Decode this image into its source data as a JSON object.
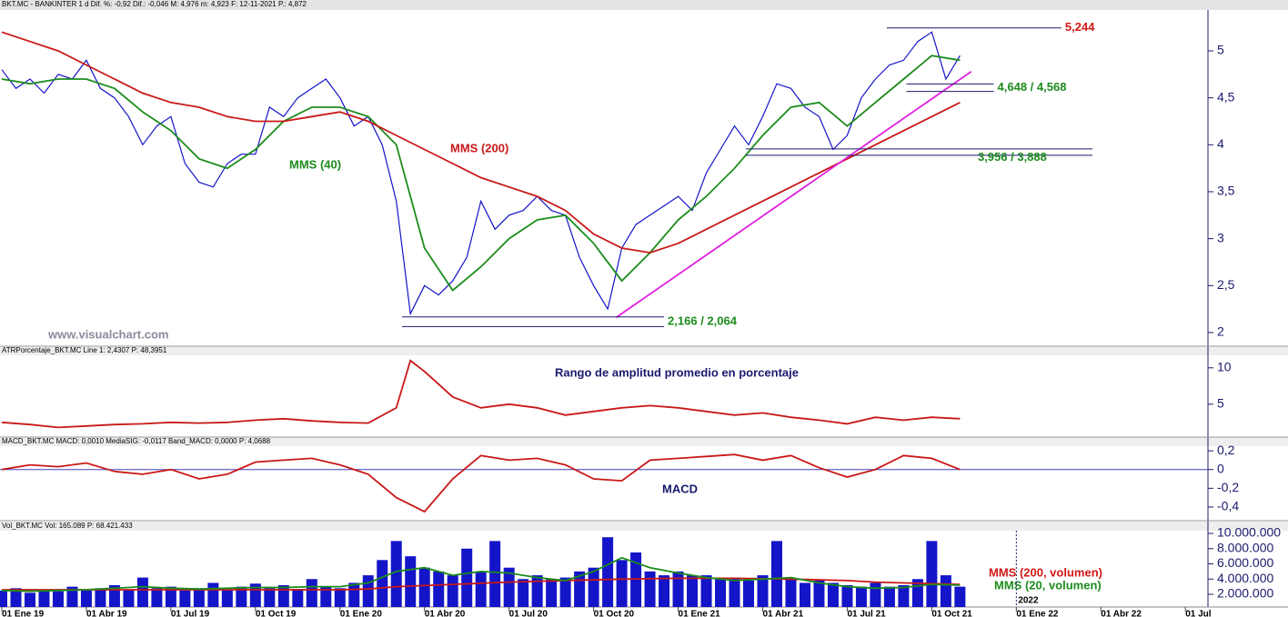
{
  "x_axis": {
    "xlim": [
      0,
      42.8
    ],
    "xticks": [
      {
        "value": 0,
        "label": "01 Ene 19"
      },
      {
        "value": 3,
        "label": "01 Abr 19"
      },
      {
        "value": 6,
        "label": "01 Jul 19"
      },
      {
        "value": 9,
        "label": "01 Oct 19"
      },
      {
        "value": 12,
        "label": "01 Ene 20"
      },
      {
        "value": 15,
        "label": "01 Abr 20"
      },
      {
        "value": 18,
        "label": "01 Jul 20"
      },
      {
        "value": 21,
        "label": "01 Oct 20"
      },
      {
        "value": 24,
        "label": "01 Ene 21"
      },
      {
        "value": 27,
        "label": "01 Abr 21"
      },
      {
        "value": 30,
        "label": "01 Jul 21"
      },
      {
        "value": 33,
        "label": "01 Oct 21"
      },
      {
        "value": 36,
        "label": "01 Ene 22"
      },
      {
        "value": 39,
        "label": "01 Abr 22"
      },
      {
        "value": 42,
        "label": "01 Jul"
      }
    ],
    "year_label": {
      "value": 36,
      "label": "2022"
    }
  },
  "chart_data": [
    {
      "type": "line",
      "title": "BKT.MC - BANKINTER   1 d  Dif. %: -0,92  Dif.: -0,046  M: 4,976  m: 4,923  F: 12-11-2021  P.: 4,872",
      "ylim": [
        1.864,
        5.426
      ],
      "yticks": [
        {
          "value": 2,
          "label": "2"
        },
        {
          "value": 2.5,
          "label": "2,5"
        },
        {
          "value": 3,
          "label": "3"
        },
        {
          "value": 3.5,
          "label": "3,5"
        },
        {
          "value": 4,
          "label": "4"
        },
        {
          "value": 4.5,
          "label": "4,5"
        },
        {
          "value": 5,
          "label": "5"
        }
      ],
      "annotations": [
        "MMS (40)",
        "MMS (200)",
        "www.visualchart.com"
      ],
      "series": [
        {
          "type": "line",
          "color": "#1414c8",
          "x": [
            0,
            0.5,
            1,
            1.5,
            2,
            2.5,
            3,
            3.5,
            4,
            4.5,
            5,
            5.5,
            6,
            6.5,
            7,
            7.5,
            8,
            8.5,
            9,
            9.5,
            10,
            10.5,
            11,
            11.5,
            12,
            12.5,
            13,
            13.5,
            14,
            14.5,
            15,
            15.5,
            16,
            16.5,
            17,
            17.5,
            18,
            18.5,
            19,
            19.5,
            20,
            20.5,
            21,
            21.5,
            22,
            22.5,
            23,
            23.5,
            24,
            24.5,
            25,
            25.5,
            26,
            26.5,
            27,
            27.5,
            28,
            28.5,
            29,
            29.5,
            30,
            30.5,
            31,
            31.5,
            32,
            32.5,
            33,
            33.5,
            34
          ],
          "values": [
            4.8,
            4.6,
            4.7,
            4.55,
            4.75,
            4.7,
            4.9,
            4.6,
            4.5,
            4.3,
            4.0,
            4.2,
            4.3,
            3.8,
            3.6,
            3.55,
            3.8,
            3.9,
            3.9,
            4.4,
            4.3,
            4.5,
            4.6,
            4.7,
            4.5,
            4.2,
            4.3,
            4.0,
            3.4,
            2.2,
            2.5,
            2.4,
            2.55,
            2.8,
            3.4,
            3.1,
            3.25,
            3.3,
            3.45,
            3.3,
            3.25,
            2.8,
            2.5,
            2.25,
            2.9,
            3.15,
            3.25,
            3.35,
            3.45,
            3.3,
            3.7,
            3.95,
            4.2,
            4.0,
            4.3,
            4.65,
            4.6,
            4.4,
            4.3,
            3.95,
            4.1,
            4.5,
            4.7,
            4.85,
            4.9,
            5.1,
            5.2,
            4.7,
            4.95
          ]
        },
        {
          "type": "line",
          "color": "#1c8c1c",
          "x": [
            0,
            1,
            2,
            3,
            4,
            5,
            6,
            7,
            8,
            9,
            10,
            11,
            12,
            13,
            14,
            15,
            16,
            17,
            18,
            19,
            20,
            21,
            22,
            23,
            24,
            25,
            26,
            27,
            28,
            29,
            30,
            31,
            32,
            33,
            34
          ],
          "values": [
            4.7,
            4.65,
            4.7,
            4.7,
            4.6,
            4.35,
            4.15,
            3.85,
            3.75,
            3.95,
            4.25,
            4.4,
            4.4,
            4.3,
            4.0,
            2.9,
            2.45,
            2.7,
            3.0,
            3.2,
            3.25,
            2.95,
            2.55,
            2.85,
            3.2,
            3.45,
            3.75,
            4.1,
            4.4,
            4.45,
            4.2,
            4.45,
            4.7,
            4.95,
            4.9
          ]
        },
        {
          "type": "line",
          "color": "#c81818",
          "x": [
            0,
            1,
            2,
            3,
            4,
            5,
            6,
            7,
            8,
            9,
            10,
            11,
            12,
            13,
            14,
            15,
            16,
            17,
            18,
            19,
            20,
            21,
            22,
            23,
            24,
            25,
            26,
            27,
            28,
            29,
            30,
            31,
            32,
            33,
            34
          ],
          "values": [
            5.2,
            5.1,
            5.0,
            4.85,
            4.7,
            4.55,
            4.45,
            4.4,
            4.3,
            4.25,
            4.25,
            4.3,
            4.35,
            4.25,
            4.1,
            3.95,
            3.8,
            3.65,
            3.55,
            3.45,
            3.3,
            3.05,
            2.9,
            2.85,
            2.95,
            3.1,
            3.25,
            3.4,
            3.55,
            3.7,
            3.85,
            4.0,
            4.15,
            4.3,
            4.45
          ]
        },
        {
          "type": "line",
          "color": "#e020e0",
          "x": [
            21.8,
            34.4
          ],
          "values": [
            2.16,
            4.78
          ]
        }
      ],
      "levels": [
        {
          "label": "5,244",
          "color": "#d01818",
          "values": [
            5.244
          ],
          "x": [
            31.4,
            37.6
          ]
        },
        {
          "label": "4,648 / 4,568",
          "color": "#1c8c1c",
          "values": [
            4.648,
            4.568
          ],
          "x": [
            32.1,
            35.2
          ]
        },
        {
          "label": "3,956 / 3,888",
          "color": "#1c8c1c",
          "values": [
            3.956,
            3.888
          ],
          "x": [
            26.4,
            38.7
          ]
        },
        {
          "label": "2,166 / 2,064",
          "color": "#1c8c1c",
          "values": [
            2.166,
            2.064
          ],
          "x": [
            14.2,
            23.5
          ]
        }
      ]
    },
    {
      "type": "line",
      "title": "ATRPorcentaje_BKT.MC  Line 1: 2,4307  P: 48,3951",
      "ylim": [
        0.6,
        11.6
      ],
      "yticks": [
        5,
        10
      ],
      "annotations": [
        "Rango de amplitud promedio en porcentaje"
      ],
      "series": [
        {
          "type": "line",
          "color": "#c81818",
          "x": [
            0,
            1,
            2,
            3,
            4,
            5,
            6,
            7,
            8,
            9,
            10,
            11,
            12,
            13,
            14,
            14.5,
            15,
            16,
            17,
            18,
            19,
            20,
            21,
            22,
            23,
            24,
            25,
            26,
            27,
            28,
            29,
            30,
            31,
            32,
            33,
            34
          ],
          "values": [
            2.5,
            2.2,
            1.8,
            2.0,
            2.2,
            2.3,
            2.5,
            2.4,
            2.5,
            2.8,
            3.0,
            2.7,
            2.5,
            2.4,
            4.5,
            11,
            9.5,
            6.0,
            4.5,
            5.0,
            4.5,
            3.5,
            4.0,
            4.5,
            4.8,
            4.5,
            4.0,
            3.5,
            3.8,
            3.2,
            2.8,
            2.3,
            3.2,
            2.8,
            3.2,
            3.0
          ]
        }
      ]
    },
    {
      "type": "line",
      "title": "MACD_BKT.MC  MACD: 0,0010  MediaSIG: -0,0117  Band_MACD: 0,0000  P: 4,0688",
      "ylim": [
        -0.546,
        0.24
      ],
      "yticks": [
        {
          "value": 0.2,
          "label": "0,2"
        },
        0,
        {
          "value": -0.2,
          "label": "-0,2"
        },
        {
          "value": -0.4,
          "label": "-0,4"
        }
      ],
      "annotations": [
        "MACD"
      ],
      "series": [
        {
          "type": "line",
          "color": "#c81818",
          "x": [
            0,
            1,
            2,
            3,
            4,
            5,
            6,
            7,
            8,
            9,
            10,
            11,
            12,
            13,
            14,
            15,
            16,
            17,
            18,
            19,
            20,
            21,
            22,
            23,
            24,
            25,
            26,
            27,
            28,
            29,
            30,
            31,
            32,
            33,
            34
          ],
          "values": [
            0.0,
            0.05,
            0.03,
            0.07,
            -0.02,
            -0.05,
            0.0,
            -0.1,
            -0.05,
            0.08,
            0.1,
            0.12,
            0.05,
            -0.05,
            -0.3,
            -0.45,
            -0.1,
            0.15,
            0.1,
            0.12,
            0.05,
            -0.1,
            -0.12,
            0.1,
            0.12,
            0.14,
            0.16,
            0.1,
            0.15,
            0.02,
            -0.08,
            0.0,
            0.15,
            0.12,
            0.0
          ]
        }
      ]
    },
    {
      "type": "bar",
      "title": "Vol_BKT.MC  Vol: 165.089  P: 68.421.433",
      "ylim": [
        330000,
        10360000
      ],
      "yticks": [
        {
          "value": 2000000,
          "label": "2.000.000"
        },
        {
          "value": 4000000,
          "label": "4.000.000"
        },
        {
          "value": 6000000,
          "label": "6.000.000"
        },
        {
          "value": 8000000,
          "label": "8.000.000"
        },
        {
          "value": 10000000,
          "label": "10.000.000"
        }
      ],
      "annotations": [
        "MMS (200, volumen)",
        "MMS (20, volumen)"
      ],
      "series": [
        {
          "type": "bar",
          "color": "#1414c8",
          "x": [
            0,
            0.5,
            1,
            1.5,
            2,
            2.5,
            3,
            3.5,
            4,
            4.5,
            5,
            5.5,
            6,
            6.5,
            7,
            7.5,
            8,
            8.5,
            9,
            9.5,
            10,
            10.5,
            11,
            11.5,
            12,
            12.5,
            13,
            13.5,
            14,
            14.5,
            15,
            15.5,
            16,
            16.5,
            17,
            17.5,
            18,
            18.5,
            19,
            19.5,
            20,
            20.5,
            21,
            21.5,
            22,
            22.5,
            23,
            23.5,
            24,
            24.5,
            25,
            25.5,
            26,
            26.5,
            27,
            27.5,
            28,
            28.5,
            29,
            29.5,
            30,
            30.5,
            31,
            31.5,
            32,
            32.5,
            33,
            33.5,
            34
          ],
          "values": [
            2500000,
            2800000,
            2200000,
            2600000,
            2400000,
            3000000,
            2500000,
            2800000,
            3200000,
            2600000,
            4200000,
            2800000,
            3000000,
            2500000,
            2800000,
            3500000,
            2600000,
            3000000,
            3400000,
            2800000,
            3200000,
            2700000,
            4000000,
            3000000,
            2800000,
            3500000,
            4500000,
            6500000,
            9000000,
            7000000,
            5500000,
            5000000,
            4500000,
            8000000,
            5000000,
            9000000,
            5500000,
            4000000,
            4500000,
            4000000,
            4200000,
            5000000,
            5500000,
            9500000,
            6500000,
            7500000,
            5000000,
            4500000,
            5000000,
            4500000,
            4500000,
            4000000,
            4200000,
            3800000,
            4500000,
            9000000,
            4000000,
            3500000,
            3800000,
            3500000,
            3200000,
            3000000,
            3500000,
            3000000,
            3200000,
            4000000,
            9000000,
            4500000,
            3000000
          ]
        },
        {
          "type": "line",
          "color": "#c81818",
          "x": [
            0,
            2,
            4,
            6,
            8,
            10,
            12,
            13,
            14,
            16,
            18,
            20,
            22,
            24,
            26,
            28,
            30,
            31,
            32,
            34
          ],
          "values": [
            2600000,
            2600000,
            2600000,
            2600000,
            2600000,
            2600000,
            2600000,
            2700000,
            3000000,
            3300000,
            3600000,
            3800000,
            4000000,
            4100000,
            4100000,
            4000000,
            3800000,
            3600000,
            3500000,
            3300000
          ]
        },
        {
          "type": "line",
          "color": "#1c8c1c",
          "x": [
            0,
            1,
            2,
            3,
            4,
            5,
            6,
            7,
            8,
            9,
            10,
            11,
            12,
            13,
            14,
            15,
            16,
            17,
            18,
            19,
            20,
            21,
            22,
            23,
            24,
            25,
            26,
            27,
            28,
            29,
            30,
            31,
            32,
            33,
            34
          ],
          "values": [
            2500000,
            2400000,
            2500000,
            2600000,
            2800000,
            3000000,
            2800000,
            2700000,
            2800000,
            2900000,
            2900000,
            3000000,
            3000000,
            3500000,
            5000000,
            5500000,
            4500000,
            5000000,
            4800000,
            4200000,
            3800000,
            5000000,
            6800000,
            5500000,
            4800000,
            4200000,
            3800000,
            4000000,
            4200000,
            3500000,
            3000000,
            2800000,
            2900000,
            3300000,
            3200000
          ]
        }
      ]
    }
  ]
}
